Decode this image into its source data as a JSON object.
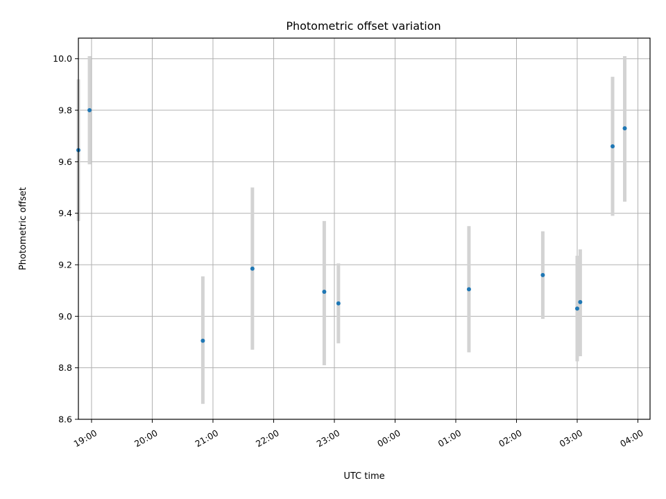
{
  "chart_data": {
    "type": "scatter",
    "title": "Photometric offset variation",
    "xlabel": "UTC time",
    "ylabel": "Photometric offset",
    "xlim": [
      "18:47",
      "04:12"
    ],
    "ylim": [
      8.6,
      10.08
    ],
    "x_ticks": [
      "19:00",
      "20:00",
      "21:00",
      "22:00",
      "23:00",
      "00:00",
      "01:00",
      "02:00",
      "03:00",
      "04:00"
    ],
    "y_ticks": [
      8.6,
      8.8,
      9.0,
      9.2,
      9.4,
      9.6,
      9.8,
      10.0
    ],
    "grid": true,
    "series": [
      {
        "points": [
          {
            "time": "18:47",
            "value": 9.645,
            "err_low": 9.37,
            "err_high": 9.92
          },
          {
            "time": "18:58",
            "value": 9.8,
            "err_low": 9.59,
            "err_high": 10.01
          },
          {
            "time": "20:50",
            "value": 8.905,
            "err_low": 8.66,
            "err_high": 9.155
          },
          {
            "time": "21:39",
            "value": 9.185,
            "err_low": 8.87,
            "err_high": 9.5
          },
          {
            "time": "22:50",
            "value": 9.095,
            "err_low": 8.81,
            "err_high": 9.37
          },
          {
            "time": "23:04",
            "value": 9.05,
            "err_low": 8.895,
            "err_high": 9.205
          },
          {
            "time": "01:13",
            "value": 9.105,
            "err_low": 8.86,
            "err_high": 9.35
          },
          {
            "time": "02:26",
            "value": 9.16,
            "err_low": 8.99,
            "err_high": 9.33
          },
          {
            "time": "03:00",
            "value": 9.03,
            "err_low": 8.825,
            "err_high": 9.235
          },
          {
            "time": "03:03",
            "value": 9.055,
            "err_low": 8.845,
            "err_high": 9.26
          },
          {
            "time": "03:35",
            "value": 9.66,
            "err_low": 9.39,
            "err_high": 9.93
          },
          {
            "time": "03:47",
            "value": 9.73,
            "err_low": 9.445,
            "err_high": 10.01
          }
        ]
      }
    ],
    "colors": {
      "point": "#1f77b4",
      "errorbar": "#d3d3d3",
      "grid": "#b0b0b0"
    }
  }
}
